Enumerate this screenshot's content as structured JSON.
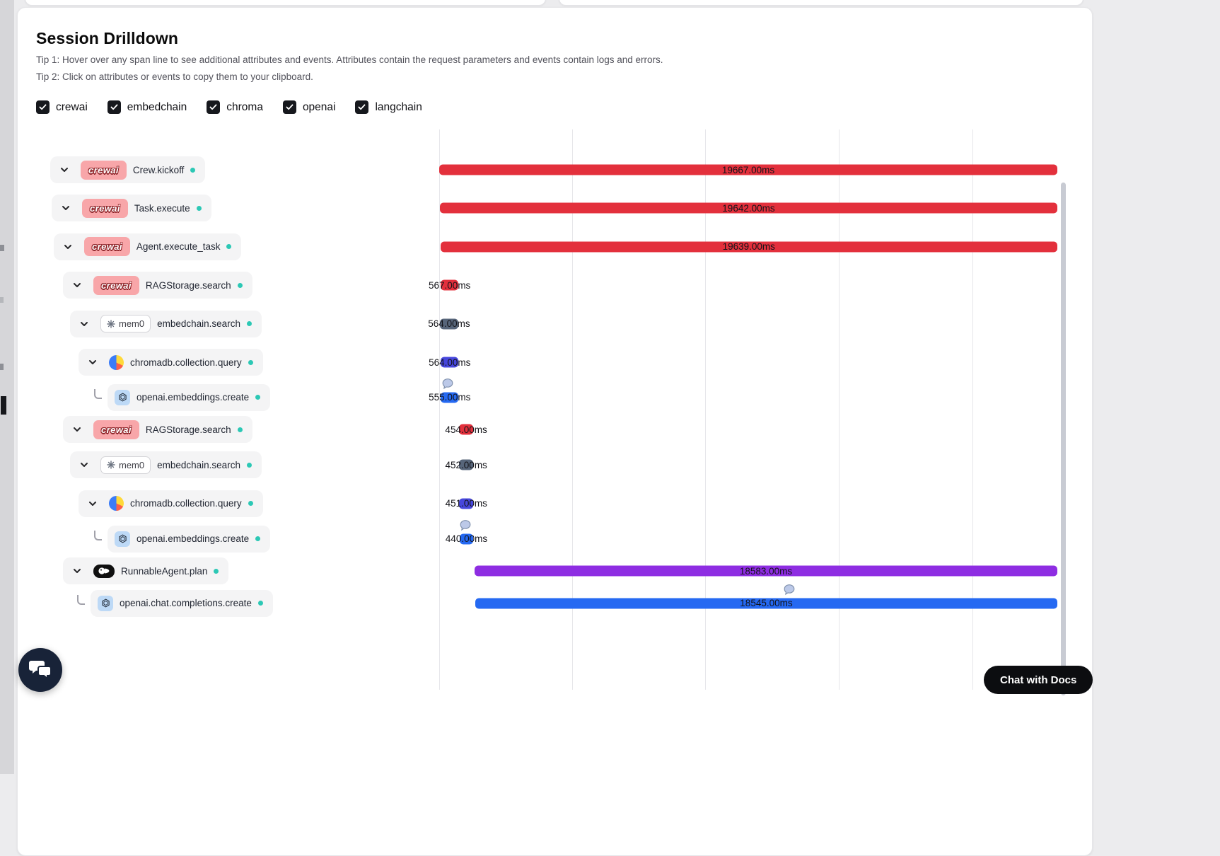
{
  "page": {
    "title": "Session Drilldown",
    "tip1": "Tip 1: Hover over any span line to see additional attributes and events. Attributes contain the request parameters and events contain logs and errors.",
    "tip2": "Tip 2: Click on attributes or events to copy them to your clipboard.",
    "chat_with_docs": "Chat with Docs"
  },
  "logos": {
    "crewai": "crewai",
    "mem0": "mem0"
  },
  "filters": [
    {
      "label": "crewai",
      "checked": true
    },
    {
      "label": "embedchain",
      "checked": true
    },
    {
      "label": "chroma",
      "checked": true
    },
    {
      "label": "openai",
      "checked": true
    },
    {
      "label": "langchain",
      "checked": true
    }
  ],
  "colors": {
    "red": "#e3303c",
    "slate": "#57657a",
    "indigo": "#4747dd",
    "blue": "#2569f2",
    "purple": "#8e2de2",
    "status_dot": "#2cc8b5"
  },
  "chart_data": {
    "type": "waterfall-trace",
    "unit": "ms",
    "grid": "vertical-lines",
    "rows": [
      {
        "name": "Crew.kickoff",
        "provider": "crewai",
        "level": 0,
        "leaf": false,
        "duration_ms": 19667.0,
        "label": "19667.00ms",
        "color": "red",
        "start_pct": 0.0,
        "width_pct": 98.42,
        "event": false
      },
      {
        "name": "Task.execute",
        "provider": "crewai",
        "level": 1,
        "leaf": false,
        "duration_ms": 19642.0,
        "label": "19642.00ms",
        "color": "red",
        "start_pct": 0.11,
        "width_pct": 98.31,
        "event": false
      },
      {
        "name": "Agent.execute_task",
        "provider": "crewai",
        "level": 2,
        "leaf": false,
        "duration_ms": 19639.0,
        "label": "19639.00ms",
        "color": "red",
        "start_pct": 0.17,
        "width_pct": 98.25,
        "event": false
      },
      {
        "name": "RAGStorage.search",
        "provider": "crewai",
        "level": 3,
        "leaf": false,
        "duration_ms": 567.0,
        "label": "567.00ms",
        "color": "red",
        "start_pct": 0.23,
        "width_pct": 2.85,
        "event": false
      },
      {
        "name": "embedchain.search",
        "provider": "mem0",
        "level": 4,
        "leaf": false,
        "duration_ms": 564.0,
        "label": "564.00ms",
        "color": "slate",
        "start_pct": 0.15,
        "width_pct": 2.84,
        "event": false
      },
      {
        "name": "chromadb.collection.query",
        "provider": "chroma",
        "level": 5,
        "leaf": false,
        "duration_ms": 564.0,
        "label": "564.00ms",
        "color": "indigo",
        "start_pct": 0.25,
        "width_pct": 2.82,
        "event": false
      },
      {
        "name": "openai.embeddings.create",
        "provider": "openai",
        "level": 6,
        "leaf": true,
        "duration_ms": 555.0,
        "label": "555.00ms",
        "color": "blue",
        "start_pct": 0.27,
        "width_pct": 2.78,
        "event": true,
        "event_left_pct": 1.35
      },
      {
        "name": "RAGStorage.search",
        "provider": "crewai",
        "level": 3,
        "leaf": false,
        "duration_ms": 454.0,
        "label": "454.00ms",
        "color": "red",
        "start_pct": 3.15,
        "width_pct": 2.28,
        "event": false
      },
      {
        "name": "embedchain.search",
        "provider": "mem0",
        "level": 4,
        "leaf": false,
        "duration_ms": 452.0,
        "label": "452.00ms",
        "color": "slate",
        "start_pct": 3.17,
        "width_pct": 2.26,
        "event": false
      },
      {
        "name": "chromadb.collection.query",
        "provider": "chroma",
        "level": 5,
        "leaf": false,
        "duration_ms": 451.0,
        "label": "451.00ms",
        "color": "indigo",
        "start_pct": 3.18,
        "width_pct": 2.26,
        "event": false
      },
      {
        "name": "openai.embeddings.create",
        "provider": "openai",
        "level": 6,
        "leaf": true,
        "duration_ms": 440.0,
        "label": "440.00ms",
        "color": "blue",
        "start_pct": 3.23,
        "width_pct": 2.21,
        "event": true,
        "event_left_pct": 4.17
      },
      {
        "name": "RunnableAgent.plan",
        "provider": "langchain",
        "level": 3,
        "leaf": false,
        "duration_ms": 18583.0,
        "label": "18583.00ms",
        "color": "purple",
        "start_pct": 5.63,
        "width_pct": 92.79,
        "event": false
      },
      {
        "name": "openai.chat.completions.create",
        "provider": "openai",
        "level": 4,
        "leaf": true,
        "duration_ms": 18545.0,
        "label": "18545.00ms",
        "color": "blue",
        "start_pct": 5.74,
        "width_pct": 92.68,
        "event": true,
        "event_left_pct": 55.7
      }
    ]
  }
}
